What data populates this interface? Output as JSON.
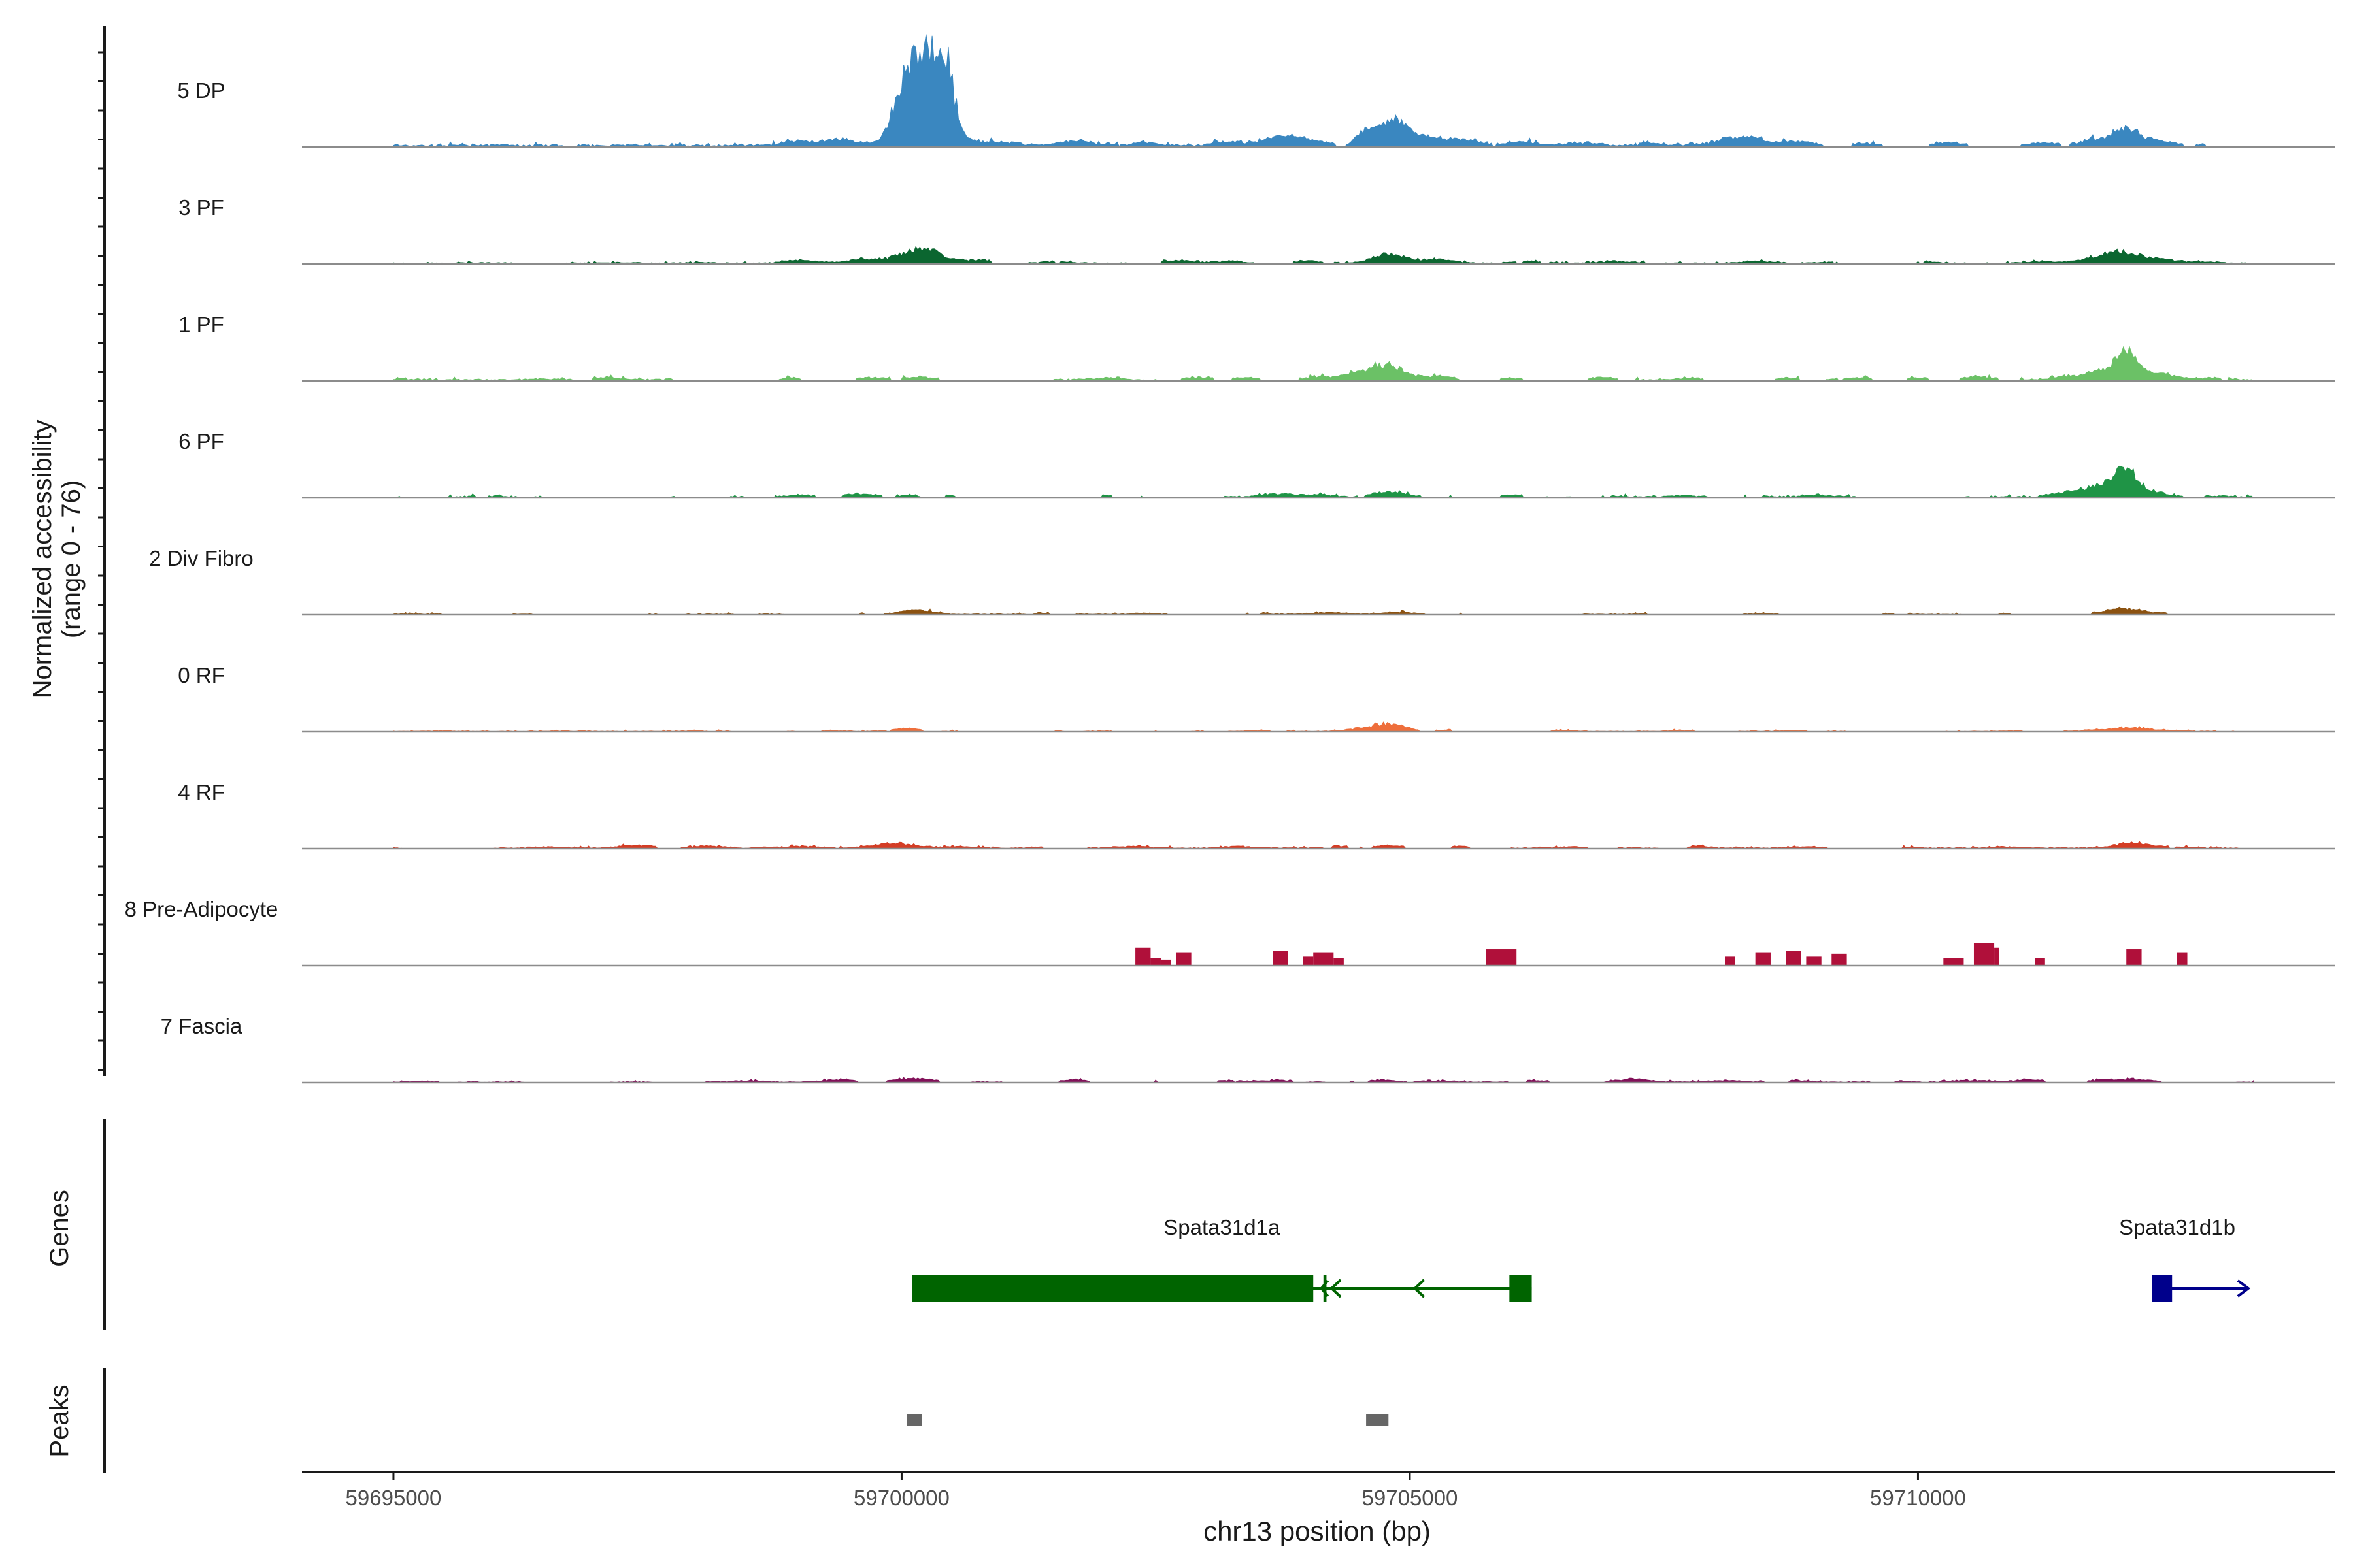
{
  "chart_data": {
    "type": "area",
    "title": "",
    "y_axis_label": "Normalized accessibility",
    "y_axis_range_label": "(range 0 - 76)",
    "ylim": [
      0,
      76
    ],
    "xlabel": "chr13 position (bp)",
    "xlim": [
      59694100,
      59714100
    ],
    "x_ticks": [
      {
        "value": 59695000,
        "label": "59695000"
      },
      {
        "value": 59700000,
        "label": "59700000"
      },
      {
        "value": 59705000,
        "label": "59705000"
      },
      {
        "value": 59710000,
        "label": "59710000"
      }
    ],
    "track_region": [
      59695000,
      59713300
    ],
    "tracks": [
      {
        "name": "5 DP",
        "color": "#3a87c0",
        "baseline": 1.2,
        "noise": 0.9,
        "sparsity": 0.18,
        "peaks": [
          [
            59694900,
            0.35
          ],
          [
            59696000,
            0.35
          ],
          [
            59696700,
            0.4
          ],
          [
            59697500,
            0.4
          ],
          [
            59698400,
            0.4
          ],
          [
            59699000,
            3
          ],
          [
            59699400,
            4
          ],
          [
            59699800,
            1.5
          ],
          [
            59700000,
            35
          ],
          [
            59700200,
            57
          ],
          [
            59700400,
            63
          ],
          [
            59700600,
            4
          ],
          [
            59701000,
            2.5
          ],
          [
            59701700,
            3
          ],
          [
            59702400,
            1.8
          ],
          [
            59703200,
            2.5
          ],
          [
            59703700,
            6.5
          ],
          [
            59704000,
            4
          ],
          [
            59704600,
            12
          ],
          [
            59704850,
            16
          ],
          [
            59705100,
            8
          ],
          [
            59705500,
            4
          ],
          [
            59706100,
            2.5
          ],
          [
            59706700,
            2
          ],
          [
            59707400,
            1.5
          ],
          [
            59708000,
            2
          ],
          [
            59708300,
            6
          ],
          [
            59708800,
            3
          ],
          [
            59709500,
            1.5
          ],
          [
            59710300,
            2
          ],
          [
            59711200,
            2
          ],
          [
            59711800,
            5
          ],
          [
            59712050,
            11
          ],
          [
            59712300,
            4
          ],
          [
            59712800,
            1
          ]
        ]
      },
      {
        "name": "3 PF",
        "color": "#0b6630",
        "baseline": 0.6,
        "noise": 0.7,
        "sparsity": 0.3,
        "peaks": [
          [
            59696000,
            0.2
          ],
          [
            59697200,
            0.5
          ],
          [
            59698000,
            0.5
          ],
          [
            59699000,
            2
          ],
          [
            59699600,
            2.5
          ],
          [
            59700000,
            4
          ],
          [
            59700250,
            8.5
          ],
          [
            59700700,
            2
          ],
          [
            59701500,
            1
          ],
          [
            59702700,
            1.5
          ],
          [
            59703200,
            1.5
          ],
          [
            59704000,
            1.5
          ],
          [
            59704800,
            6.5
          ],
          [
            59705300,
            2.5
          ],
          [
            59706200,
            1.2
          ],
          [
            59707000,
            1.2
          ],
          [
            59708400,
            1.3
          ],
          [
            59709200,
            1
          ],
          [
            59710000,
            1
          ],
          [
            59711200,
            1.2
          ],
          [
            59711700,
            2.5
          ],
          [
            59712000,
            7.5
          ],
          [
            59712350,
            3
          ],
          [
            59712800,
            1
          ]
        ]
      },
      {
        "name": "1 PF",
        "color": "#6bc166",
        "baseline": 0.9,
        "noise": 0.6,
        "sparsity": 0.2,
        "peaks": [
          [
            59695000,
            0.5
          ],
          [
            59696500,
            0.6
          ],
          [
            59697100,
            1.5
          ],
          [
            59697800,
            0.8
          ],
          [
            59698900,
            1.3
          ],
          [
            59699700,
            1.6
          ],
          [
            59700200,
            1.8
          ],
          [
            59701000,
            0.8
          ],
          [
            59702000,
            1.2
          ],
          [
            59702900,
            1.6
          ],
          [
            59703400,
            1.4
          ],
          [
            59704100,
            2
          ],
          [
            59704500,
            4.5
          ],
          [
            59704800,
            9.5
          ],
          [
            59705300,
            2.2
          ],
          [
            59706000,
            1.3
          ],
          [
            59706900,
            1.6
          ],
          [
            59707800,
            1.2
          ],
          [
            59708700,
            1.3
          ],
          [
            59709400,
            1.5
          ],
          [
            59710000,
            1.3
          ],
          [
            59710600,
            2
          ],
          [
            59711400,
            1.6
          ],
          [
            59711800,
            6
          ],
          [
            59712050,
            18
          ],
          [
            59712350,
            5
          ],
          [
            59712900,
            1.2
          ]
        ]
      },
      {
        "name": "6 PF",
        "color": "#1f9446",
        "baseline": 0.8,
        "noise": 0.8,
        "sparsity": 0.42,
        "peaks": [
          [
            59695900,
            0.6
          ],
          [
            59696700,
            0.5
          ],
          [
            59699000,
            1.3
          ],
          [
            59699600,
            2
          ],
          [
            59700100,
            1
          ],
          [
            59700500,
            1
          ],
          [
            59701500,
            0.8
          ],
          [
            59702000,
            1
          ],
          [
            59702400,
            0.8
          ],
          [
            59703000,
            0.8
          ],
          [
            59703700,
            2
          ],
          [
            59704100,
            1.5
          ],
          [
            59704800,
            3.5
          ],
          [
            59705400,
            1
          ],
          [
            59706000,
            1.3
          ],
          [
            59706900,
            1
          ],
          [
            59707700,
            0.9
          ],
          [
            59708300,
            1
          ],
          [
            59709000,
            1
          ],
          [
            59709600,
            0.8
          ],
          [
            59711500,
            4
          ],
          [
            59711850,
            8
          ],
          [
            59712050,
            15
          ],
          [
            59712250,
            4
          ],
          [
            59712800,
            0.8
          ]
        ]
      },
      {
        "name": "2 Div Fibro",
        "color": "#8c5210",
        "baseline": 0.5,
        "noise": 0.6,
        "sparsity": 0.5,
        "peaks": [
          [
            59695200,
            0.3
          ],
          [
            59696500,
            0.3
          ],
          [
            59697200,
            0.3
          ],
          [
            59698500,
            0.4
          ],
          [
            59699600,
            1
          ],
          [
            59700150,
            3
          ],
          [
            59701500,
            0.8
          ],
          [
            59702400,
            0.7
          ],
          [
            59703400,
            1
          ],
          [
            59704200,
            1.2
          ],
          [
            59704900,
            1.5
          ],
          [
            59705500,
            1
          ],
          [
            59707400,
            0.7
          ],
          [
            59708500,
            0.5
          ],
          [
            59709600,
            0.6
          ],
          [
            59711000,
            0.7
          ],
          [
            59711600,
            0.8
          ],
          [
            59712050,
            4
          ],
          [
            59712500,
            0.9
          ]
        ]
      },
      {
        "name": "0 RF",
        "color": "#ee6e3b",
        "baseline": 0.4,
        "noise": 0.6,
        "sparsity": 0.5,
        "peaks": [
          [
            59695500,
            0.3
          ],
          [
            59696800,
            0.3
          ],
          [
            59698000,
            0.3
          ],
          [
            59699200,
            0.6
          ],
          [
            59700050,
            1.8
          ],
          [
            59701000,
            0.5
          ],
          [
            59702200,
            0.5
          ],
          [
            59703500,
            0.6
          ],
          [
            59704500,
            1.5
          ],
          [
            59704800,
            5
          ],
          [
            59705400,
            1
          ],
          [
            59706500,
            0.6
          ],
          [
            59707700,
            0.5
          ],
          [
            59708800,
            0.5
          ],
          [
            59709800,
            0.5
          ],
          [
            59711000,
            0.5
          ],
          [
            59711800,
            1.2
          ],
          [
            59712150,
            2.5
          ],
          [
            59712600,
            0.4
          ]
        ]
      },
      {
        "name": "4 RF",
        "color": "#d43d25",
        "baseline": 0.6,
        "noise": 0.7,
        "sparsity": 0.35,
        "peaks": [
          [
            59695500,
            0.6
          ],
          [
            59696500,
            0.7
          ],
          [
            59697400,
            2
          ],
          [
            59698100,
            1.3
          ],
          [
            59699000,
            1.2
          ],
          [
            59699800,
            1.4
          ],
          [
            59700000,
            2.5
          ],
          [
            59700500,
            1.2
          ],
          [
            59701500,
            0.9
          ],
          [
            59702300,
            1.2
          ],
          [
            59703300,
            1
          ],
          [
            59704300,
            1.1
          ],
          [
            59704800,
            1.6
          ],
          [
            59705500,
            1.2
          ],
          [
            59706600,
            0.9
          ],
          [
            59707800,
            1.1
          ],
          [
            59708900,
            0.8
          ],
          [
            59709800,
            0.6
          ],
          [
            59710900,
            0.8
          ],
          [
            59712100,
            3.5
          ],
          [
            59712500,
            0.8
          ]
        ]
      },
      {
        "name": "8 Pre-Adipocyte",
        "color": "#b0103a",
        "baseline": 0,
        "noise": 0,
        "sparsity": 0,
        "blocks": [
          [
            59702300,
            59702450,
            12
          ],
          [
            59702450,
            59702550,
            5
          ],
          [
            59702550,
            59702650,
            4
          ],
          [
            59702700,
            59702850,
            9
          ],
          [
            59703650,
            59703800,
            10
          ],
          [
            59703950,
            59704050,
            6
          ],
          [
            59704050,
            59704250,
            9
          ],
          [
            59704250,
            59704350,
            5
          ],
          [
            59705750,
            59706050,
            11
          ],
          [
            59708100,
            59708200,
            6
          ],
          [
            59708400,
            59708550,
            9
          ],
          [
            59708700,
            59708850,
            10
          ],
          [
            59708900,
            59709050,
            6
          ],
          [
            59709150,
            59709300,
            8
          ],
          [
            59710250,
            59710450,
            5
          ],
          [
            59710550,
            59710750,
            15
          ],
          [
            59710750,
            59710800,
            12
          ],
          [
            59711150,
            59711250,
            5
          ],
          [
            59712050,
            59712200,
            11
          ],
          [
            59712550,
            59712650,
            9
          ]
        ]
      },
      {
        "name": "7 Fascia",
        "color": "#821059",
        "baseline": 0.5,
        "noise": 0.7,
        "sparsity": 0.45,
        "peaks": [
          [
            59695300,
            0.5
          ],
          [
            59696500,
            0.9
          ],
          [
            59697900,
            0.7
          ],
          [
            59698500,
            0.8
          ],
          [
            59699400,
            1.8
          ],
          [
            59700000,
            1.3
          ],
          [
            59700200,
            1.6
          ],
          [
            59701700,
            1.6
          ],
          [
            59702500,
            1
          ],
          [
            59703200,
            1.1
          ],
          [
            59703700,
            1.2
          ],
          [
            59704700,
            1.3
          ],
          [
            59705300,
            1.1
          ],
          [
            59706200,
            1
          ],
          [
            59707200,
            2.1
          ],
          [
            59708100,
            1
          ],
          [
            59708800,
            1.1
          ],
          [
            59709700,
            0.9
          ],
          [
            59710500,
            1.3
          ],
          [
            59711100,
            1.6
          ],
          [
            59711800,
            1.3
          ],
          [
            59712100,
            1.6
          ],
          [
            59712500,
            0.9
          ]
        ]
      }
    ],
    "genes_label": "Genes",
    "genes": [
      {
        "name": "Spata31d1a",
        "color": "#006400",
        "strand": "-",
        "exons": [
          [
            59700100,
            59704050
          ],
          [
            59704150,
            59704180
          ],
          [
            59705980,
            59706200
          ]
        ],
        "intron_arrows": [
          59704230,
          59705050
        ],
        "line_start": 59700100,
        "line_end": 59706200
      },
      {
        "name": "Spata31d1b",
        "color": "#00008b",
        "strand": "+",
        "exons": [
          [
            59712300,
            59712500
          ]
        ],
        "intron_arrows": [],
        "line_start": 59712300,
        "line_end": 59713250
      }
    ],
    "peaks_label": "Peaks",
    "peaks": [
      [
        59700050,
        59700200
      ],
      [
        59704570,
        59704790
      ]
    ],
    "peak_color": "#666666"
  }
}
